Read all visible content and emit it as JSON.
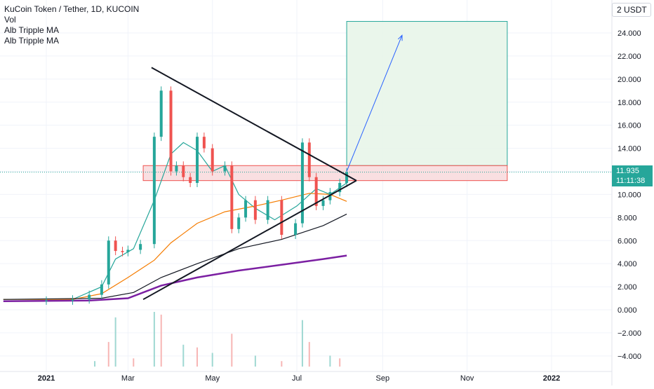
{
  "legend": {
    "title": "KuCoin Token / Tether, 1D, KUCOIN",
    "vol": "Vol",
    "indicator1": "Alb Tripple MA",
    "indicator2": "Alb Tripple MA"
  },
  "currency": "USDT",
  "currency_prefix": "2",
  "last_price": {
    "value": "11.935",
    "countdown": "11:11:38",
    "color": "#26a69a"
  },
  "colors": {
    "up": "#26a69a",
    "down": "#ef5350",
    "ma_green": "#26a69a",
    "ma_orange": "#f57c00",
    "ma_black": "#131722",
    "ma_purple": "#7b1fa2",
    "zone_fill": "#f8d7d9",
    "zone_border": "#ef5350",
    "target_fill": "#e8f5e9",
    "target_border": "#26a69a",
    "projection": "#2962ff"
  },
  "chart_data": {
    "type": "line",
    "symbol": "KuCoin Token / Tether",
    "interval": "1D",
    "exchange": "KUCOIN",
    "x_ticks": [
      "2021",
      "Mar",
      "May",
      "Jul",
      "Sep",
      "Nov",
      "2022"
    ],
    "y_ticks": [
      "24.000",
      "22.000",
      "20.000",
      "18.000",
      "16.000",
      "14.000",
      "12.000",
      "10.000",
      "8.000",
      "6.000",
      "4.000",
      "2.000",
      "0.000",
      "−2.000",
      "−4.000"
    ],
    "ylim": [
      -4.9,
      26.6
    ],
    "grid": true,
    "last_value": 11.935,
    "series": [
      {
        "kind": "price",
        "x": [
          "2020-12-01",
          "2021-01-01",
          "2021-01-20",
          "2021-02-01",
          "2021-02-10",
          "2021-02-15",
          "2021-02-20",
          "2021-02-25",
          "2021-03-01",
          "2021-03-10",
          "2021-03-20",
          "2021-03-25",
          "2021-04-01",
          "2021-04-05",
          "2021-04-10",
          "2021-04-15",
          "2021-04-20",
          "2021-04-25",
          "2021-05-01",
          "2021-05-10",
          "2021-05-15",
          "2021-05-20",
          "2021-05-25",
          "2021-06-01",
          "2021-06-10",
          "2021-06-20",
          "2021-06-30",
          "2021-07-05",
          "2021-07-10",
          "2021-07-15",
          "2021-07-20",
          "2021-07-25",
          "2021-08-01",
          "2021-08-06"
        ],
        "values": [
          0.8,
          0.8,
          0.9,
          1.3,
          2.2,
          6.0,
          5.1,
          5.0,
          5.2,
          5.7,
          15.0,
          19.0,
          12.0,
          12.5,
          11.5,
          11.0,
          15.0,
          14.0,
          12.0,
          12.5,
          7.0,
          8.0,
          9.5,
          7.8,
          9.5,
          6.5,
          7.5,
          14.5,
          11.5,
          9.0,
          9.5,
          10.2,
          11.0,
          11.935
        ]
      },
      {
        "name": "",
        "kind": "ma",
        "color": "#26a69a",
        "x": [
          "2020-12-01",
          "2021-01-20",
          "2021-02-10",
          "2021-02-20",
          "2021-03-05",
          "2021-03-20",
          "2021-04-01",
          "2021-04-10",
          "2021-04-20",
          "2021-05-01",
          "2021-05-10",
          "2021-05-20",
          "2021-06-01",
          "2021-06-15",
          "2021-07-01",
          "2021-07-15",
          "2021-07-25",
          "2021-08-06"
        ],
        "values": [
          0.9,
          0.9,
          2.0,
          4.4,
          5.3,
          9.5,
          13.5,
          14.5,
          13.8,
          12.0,
          12.5,
          10.0,
          8.8,
          7.8,
          9.0,
          10.5,
          10.0,
          11.0
        ]
      },
      {
        "name": "",
        "kind": "ma",
        "color": "#f57c00",
        "x": [
          "2020-12-01",
          "2021-01-20",
          "2021-02-10",
          "2021-03-01",
          "2021-03-20",
          "2021-04-01",
          "2021-04-20",
          "2021-05-10",
          "2021-06-01",
          "2021-06-20",
          "2021-07-10",
          "2021-07-25",
          "2021-08-06"
        ],
        "values": [
          0.9,
          0.9,
          1.4,
          2.8,
          4.3,
          5.8,
          7.5,
          8.5,
          9.0,
          9.5,
          10.1,
          10.0,
          9.4
        ]
      },
      {
        "name": "",
        "kind": "ma",
        "color": "#131722",
        "x": [
          "2020-12-01",
          "2021-02-10",
          "2021-03-05",
          "2021-03-25",
          "2021-04-20",
          "2021-05-20",
          "2021-06-20",
          "2021-07-20",
          "2021-08-06"
        ],
        "values": [
          0.9,
          1.0,
          1.5,
          2.8,
          4.0,
          5.3,
          6.1,
          7.3,
          8.3
        ]
      },
      {
        "name": "",
        "kind": "ma",
        "color": "#7b1fa2",
        "x": [
          "2020-12-01",
          "2021-02-01",
          "2021-03-01",
          "2021-03-25",
          "2021-04-20",
          "2021-05-20",
          "2021-06-20",
          "2021-07-20",
          "2021-08-06"
        ],
        "values": [
          0.75,
          0.8,
          1.0,
          2.1,
          2.8,
          3.4,
          3.9,
          4.4,
          4.7
        ]
      }
    ],
    "volume": {
      "x": [
        "2021-02-05",
        "2021-02-15",
        "2021-02-20",
        "2021-03-05",
        "2021-03-20",
        "2021-03-25",
        "2021-04-10",
        "2021-04-20",
        "2021-05-01",
        "2021-05-15",
        "2021-06-01",
        "2021-06-20",
        "2021-07-05",
        "2021-07-10",
        "2021-07-25",
        "2021-08-01"
      ],
      "relative": [
        0.1,
        0.45,
        0.9,
        0.15,
        1.0,
        0.95,
        0.4,
        0.35,
        0.25,
        0.6,
        0.2,
        0.1,
        0.85,
        0.45,
        0.2,
        0.15
      ]
    },
    "drawings": {
      "descending_trendline": {
        "from": [
          "2021-03-18",
          21.0
        ],
        "to": [
          "2021-08-13",
          11.2
        ]
      },
      "ascending_trendline": {
        "from": [
          "2021-03-12",
          0.9
        ],
        "to": [
          "2021-08-13",
          11.2
        ]
      },
      "resistance_zone": {
        "from": "2021-03-12",
        "to": "2021-11-30",
        "top": 12.5,
        "bottom": 11.2
      },
      "target_box": {
        "from": "2021-08-06",
        "to": "2021-11-30",
        "top": 25.0,
        "bottom": 12.5
      },
      "projection_arrow": {
        "from": [
          "2021-08-06",
          12.0
        ],
        "to": [
          "2021-09-15",
          23.8
        ]
      }
    }
  }
}
